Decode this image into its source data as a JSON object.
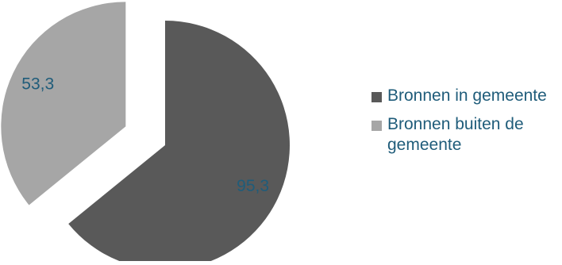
{
  "chart_data": {
    "type": "pie",
    "title": "",
    "slices": [
      {
        "label": "Bronnen in gemeente",
        "value": 95.3,
        "value_label": "95,3",
        "color": "#595959",
        "exploded": false
      },
      {
        "label": "Bronnen buiten de gemeente",
        "value": 53.3,
        "value_label": "53,3",
        "color": "#a6a6a6",
        "exploded": true
      }
    ],
    "data_label_color": "#1f5c7a",
    "legend": {
      "position": "right",
      "text_color": "#1f5c7a",
      "items": [
        {
          "label": "Bronnen in gemeente",
          "color": "#595959"
        },
        {
          "label": "Bronnen buiten de gemeente",
          "color": "#a6a6a6"
        }
      ]
    }
  }
}
